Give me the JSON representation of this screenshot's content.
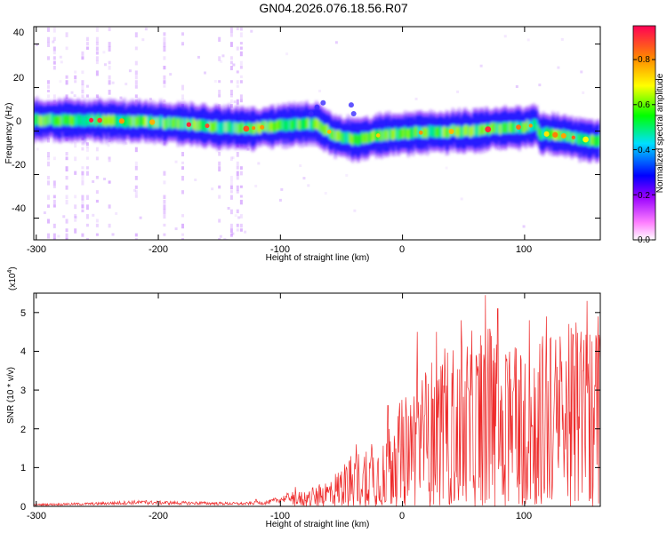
{
  "page_title": "GN04.2026.076.18.56.R07",
  "colors": {
    "snr_line": "#ee2a2a",
    "colormap": [
      "#ffffff",
      "#ff66ff",
      "#a000ff",
      "#0000ff",
      "#00ffff",
      "#00ff00",
      "#ffff00",
      "#ff8800",
      "#ff0000"
    ]
  },
  "chart_data": [
    {
      "type": "heatmap",
      "name": "spectrogram",
      "title": "GN04.2026.076.18.56.R07",
      "xlabel": "Height of straight line (km)",
      "ylabel": "Frequency (Hz)",
      "xlim": [
        -302,
        162
      ],
      "ylim": [
        -50,
        48
      ],
      "x_ticks": [
        -300,
        -200,
        -100,
        0,
        100
      ],
      "y_ticks": [
        -40,
        -20,
        0,
        20,
        40
      ],
      "x_tick_labels": [
        "-300",
        "-200",
        "-100",
        "0",
        "100"
      ],
      "y_tick_labels": [
        "-40",
        "-20",
        "0",
        "20",
        "40"
      ],
      "ridge_frequency_hz": [
        [
          -300,
          5
        ],
        [
          -250,
          5
        ],
        [
          -200,
          4
        ],
        [
          -150,
          2
        ],
        [
          -130,
          1
        ],
        [
          -110,
          2
        ],
        [
          -90,
          3
        ],
        [
          -70,
          3
        ],
        [
          -55,
          -2
        ],
        [
          -45,
          -3
        ],
        [
          -40,
          -4
        ],
        [
          -20,
          -2
        ],
        [
          0,
          -1
        ],
        [
          50,
          0
        ],
        [
          100,
          2
        ],
        [
          110,
          3
        ],
        [
          112,
          -1
        ],
        [
          130,
          -2
        ],
        [
          162,
          -5
        ]
      ],
      "colorbar": {
        "label": "Normalized spectral amplitude",
        "range": [
          0,
          0.95
        ],
        "ticks": [
          0.0,
          0.2,
          0.4,
          0.6,
          0.8
        ],
        "tick_labels": [
          "0.0",
          "0.2",
          "0.4",
          "0.6",
          "0.8"
        ]
      }
    },
    {
      "type": "line",
      "name": "snr",
      "xlabel": "Height of straight line (km)",
      "ylabel": "SNR (10 * v/v)",
      "scale_note_base": "(x10",
      "scale_note_exp": "4",
      "scale_note_close": ")",
      "xlim": [
        -302,
        162
      ],
      "ylim": [
        0,
        5.5
      ],
      "x_ticks": [
        -300,
        -200,
        -100,
        0,
        100
      ],
      "y_ticks": [
        0,
        1,
        2,
        3,
        4,
        5
      ],
      "x_tick_labels": [
        "-300",
        "-200",
        "-100",
        "0",
        "100"
      ],
      "y_tick_labels": [
        "0",
        "1",
        "2",
        "3",
        "4",
        "5"
      ],
      "envelope": [
        [
          -302,
          0.05
        ],
        [
          -250,
          0.08
        ],
        [
          -220,
          0.12
        ],
        [
          -180,
          0.1
        ],
        [
          -130,
          0.08
        ],
        [
          -110,
          0.12
        ],
        [
          -90,
          0.3
        ],
        [
          -70,
          0.45
        ],
        [
          -55,
          0.8
        ],
        [
          -40,
          1.2
        ],
        [
          -20,
          1.6
        ],
        [
          -5,
          2.2
        ],
        [
          10,
          3.0
        ],
        [
          30,
          3.5
        ],
        [
          60,
          4.0
        ],
        [
          80,
          4.2
        ],
        [
          100,
          3.9
        ],
        [
          130,
          4.0
        ],
        [
          150,
          4.3
        ],
        [
          162,
          4.0
        ]
      ],
      "peaks": [
        [
          -275,
          0.08
        ],
        [
          -210,
          0.15
        ],
        [
          -165,
          0.12
        ],
        [
          -120,
          0.18
        ],
        [
          -88,
          0.5
        ],
        [
          -50,
          0.9
        ],
        [
          -38,
          1.6
        ],
        [
          -12,
          2.6
        ],
        [
          12,
          4.5
        ],
        [
          28,
          4.5
        ],
        [
          48,
          4.8
        ],
        [
          68,
          5.45
        ],
        [
          78,
          5.1
        ],
        [
          92,
          4.1
        ],
        [
          104,
          4.8
        ],
        [
          118,
          4.9
        ],
        [
          138,
          4.6
        ],
        [
          151,
          5.3
        ],
        [
          160,
          4.9
        ]
      ]
    }
  ]
}
